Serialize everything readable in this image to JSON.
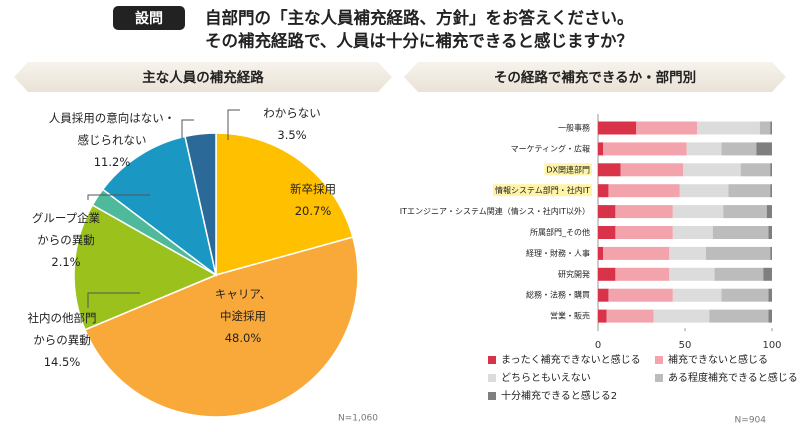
{
  "header": {
    "badge": "設問",
    "question_lines": [
      "自部門の「主な人員補充経路、方針」をお答えください。",
      "その補充経路で、人員は十分に補充できると感じますか？"
    ]
  },
  "chart_data": [
    {
      "type": "pie",
      "title": "主な人員の補充経路",
      "note": "N=1,060",
      "categories": [
        "新卒採用",
        "キャリア、\n中途採用",
        "社内の他部門\nからの異動",
        "グループ企業\nからの異動",
        "人員採用の意向はない・\n感じられない",
        "わからない"
      ],
      "values": [
        20.7,
        48.0,
        14.5,
        2.1,
        11.2,
        3.5
      ],
      "value_labels": [
        "20.7%",
        "48.0%",
        "14.5%",
        "2.1%",
        "11.2%",
        "3.5%"
      ],
      "colors": [
        "#ffc000",
        "#f9a93a",
        "#9bc21c",
        "#4fb99b",
        "#1b97c4",
        "#2b6a98"
      ]
    },
    {
      "type": "bar",
      "orientation": "horizontal",
      "stacked": true,
      "title": "その経路で補充できるか・部門別",
      "note": "N=904",
      "categories": [
        "一般事務",
        "マーケティング・広報",
        "DX関連部門",
        "情報システム部門・社内IT",
        "ITエンジニア・システム関連（情シス・社内IT以外）",
        "所属部門_その他",
        "経理・財務・人事",
        "研究開発",
        "総務・法務・購買",
        "営業・販売"
      ],
      "highlight": [
        2,
        3
      ],
      "xlim": [
        0,
        100
      ],
      "xticks": [
        0,
        50,
        100
      ],
      "series": [
        {
          "name": "まったく補充できないと感じる",
          "color": "#d9334a",
          "values": [
            22,
            3,
            13,
            6,
            10,
            10,
            3,
            10,
            6,
            5
          ]
        },
        {
          "name": "補充できないと感じる",
          "color": "#f2a3ab",
          "values": [
            35,
            48,
            36,
            41,
            33,
            33,
            38,
            31,
            37,
            27
          ]
        },
        {
          "name": "どちらともいえない",
          "color": "#dcdcdc",
          "values": [
            36,
            20,
            33,
            28,
            29,
            23,
            21,
            26,
            28,
            32
          ]
        },
        {
          "name": "ある程度補充できると感じる",
          "color": "#bcbcbc",
          "values": [
            6,
            20,
            17,
            24,
            25,
            32,
            37,
            28,
            27,
            34
          ]
        },
        {
          "name": "十分補充できると感じる2",
          "color": "#7f7f7f",
          "values": [
            1,
            9,
            1,
            1,
            3,
            2,
            1,
            5,
            2,
            2
          ]
        }
      ]
    }
  ]
}
